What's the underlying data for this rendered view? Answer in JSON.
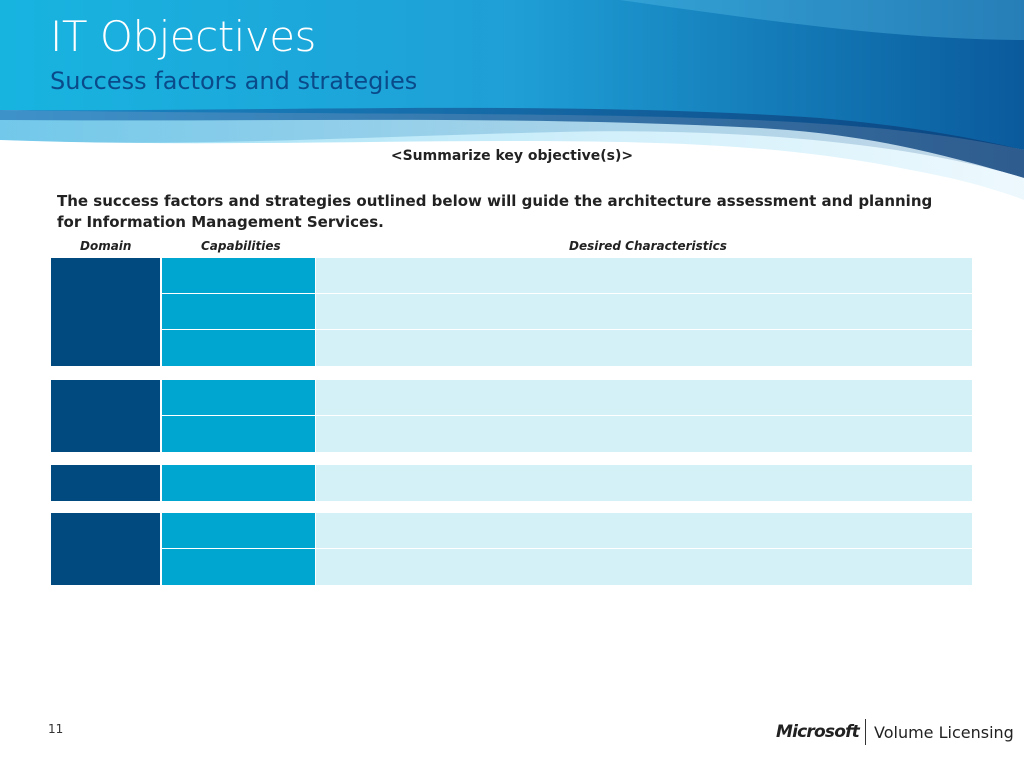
{
  "slide": {
    "title": "IT Objectives",
    "subtitle": "Success factors and strategies",
    "summary": "<Summarize key objective(s)>",
    "intro": "The success factors and strategies outlined below will guide the architecture assessment and planning for Information Management Services.",
    "page_number": "11"
  },
  "table": {
    "headers": {
      "domain": "Domain",
      "capabilities": "Capabilities",
      "desired": "Desired Characteristics"
    }
  },
  "footer": {
    "brand": "Microsoft",
    "product": "Volume Licensing"
  },
  "colors": {
    "domain": "#004a80",
    "capability": "#00a6d0",
    "desired": "#d4f1f8",
    "banner": "#1a8fc8"
  }
}
